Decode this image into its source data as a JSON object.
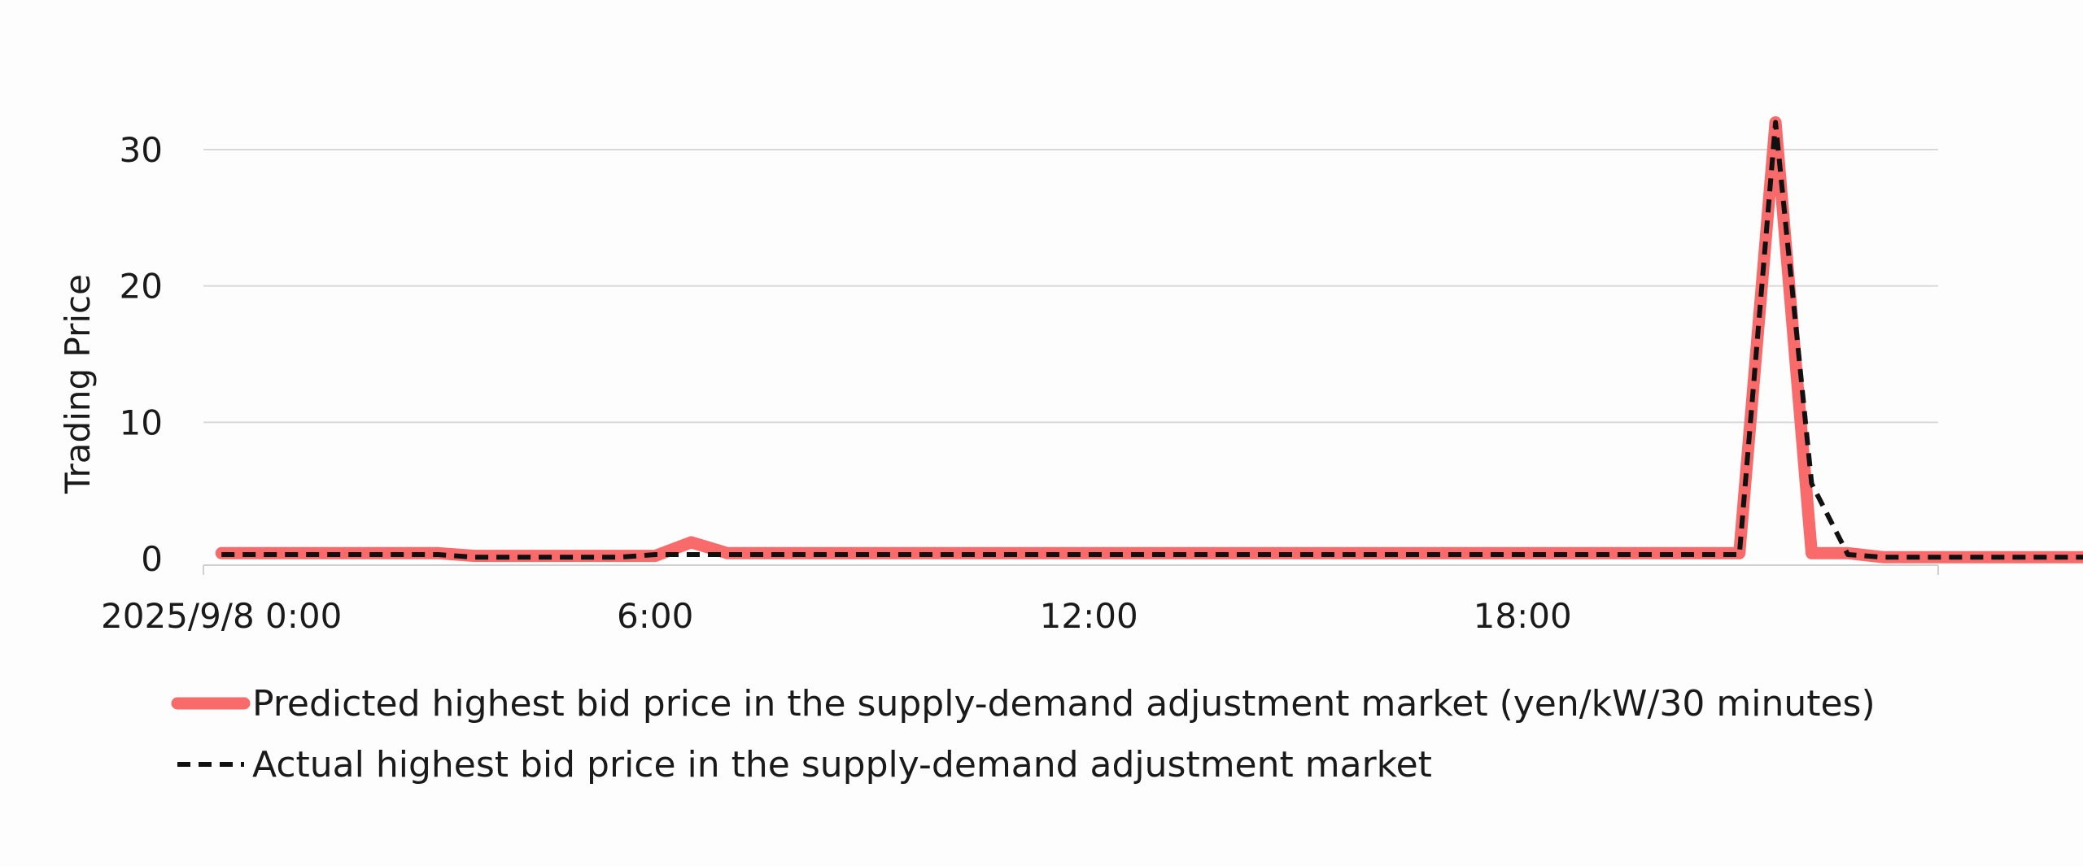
{
  "chart_data": {
    "type": "line",
    "title": "",
    "xlabel": "",
    "ylabel": "Trading Price",
    "ylim": [
      0,
      33
    ],
    "y_ticks": [
      0,
      10,
      20,
      30
    ],
    "x_tick_labels": [
      "2025/9/8 0:00",
      "6:00",
      "12:00",
      "18:00"
    ],
    "x_tick_hours": [
      0,
      6,
      12,
      18
    ],
    "x_range_hours": [
      -0.25,
      23.75
    ],
    "interval_minutes": 30,
    "grid": true,
    "legend_position": "bottom-left",
    "series": [
      {
        "name": "Predicted highest bid price in the supply-demand adjustment market (yen/kW/30 minutes)",
        "color": "#f96a6a",
        "style": "solid",
        "values": [
          0.4,
          0.4,
          0.4,
          0.4,
          0.4,
          0.4,
          0.4,
          0.2,
          0.2,
          0.2,
          0.2,
          0.2,
          0.2,
          1.2,
          0.4,
          0.4,
          0.4,
          0.4,
          0.4,
          0.4,
          0.4,
          0.4,
          0.4,
          0.4,
          0.4,
          0.4,
          0.4,
          0.4,
          0.4,
          0.4,
          0.4,
          0.4,
          0.4,
          0.4,
          0.4,
          0.4,
          0.4,
          0.4,
          0.4,
          0.4,
          0.4,
          0.4,
          0.4,
          32.0,
          0.4,
          0.4,
          0.1,
          0.1,
          0.1,
          0.1,
          0.1,
          0.1,
          0.1,
          0.1,
          0.4,
          0.4,
          0.4,
          0.4,
          0.4,
          0.4
        ]
      },
      {
        "name": "Actual highest bid price in the supply-demand adjustment market",
        "color": "#111111",
        "style": "dashed",
        "values": [
          0.3,
          0.3,
          0.3,
          0.3,
          0.3,
          0.3,
          0.3,
          0.1,
          0.1,
          0.1,
          0.1,
          0.1,
          0.3,
          0.3,
          0.3,
          0.3,
          0.3,
          0.3,
          0.3,
          0.3,
          0.3,
          0.3,
          0.3,
          0.3,
          0.3,
          0.3,
          0.3,
          0.3,
          0.3,
          0.3,
          0.3,
          0.3,
          0.3,
          0.3,
          0.3,
          0.3,
          0.3,
          0.3,
          0.3,
          0.3,
          0.3,
          0.3,
          0.3,
          32.0,
          5.5,
          0.3,
          0.1,
          0.1,
          0.1,
          0.1,
          0.1,
          0.1,
          0.1,
          0.1,
          0.3,
          0.3,
          0.3,
          0.3,
          0.3,
          0.3
        ]
      }
    ]
  }
}
